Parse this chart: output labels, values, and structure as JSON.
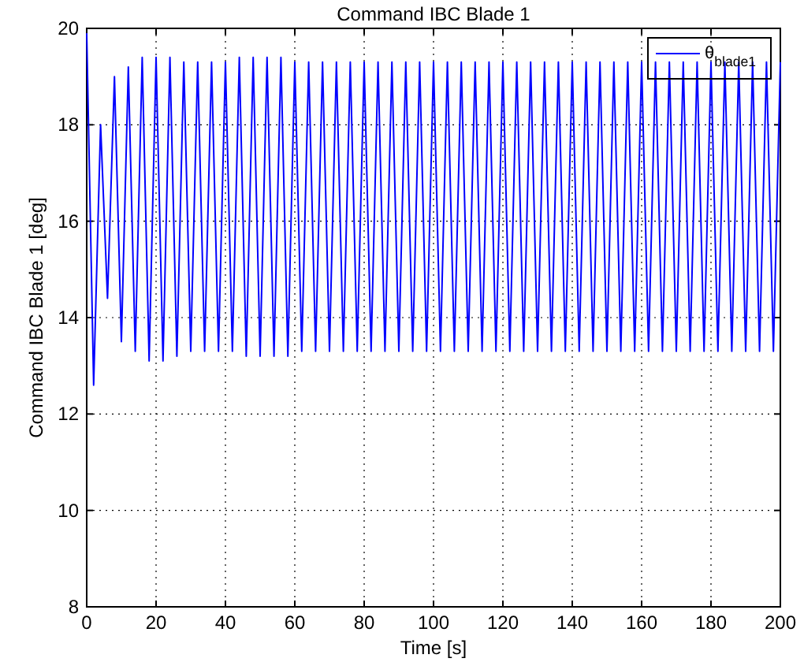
{
  "chart_data": {
    "type": "line",
    "title": "Command IBC Blade 1",
    "xlabel": "Time [s]",
    "ylabel": "Command IBC Blade 1 [deg]",
    "xlim": [
      0,
      200
    ],
    "xticks": [
      0,
      20,
      40,
      60,
      80,
      100,
      120,
      140,
      160,
      180,
      200
    ],
    "ylim": [
      8,
      20
    ],
    "yticks": [
      8,
      10,
      12,
      14,
      16,
      18,
      20
    ],
    "grid": true,
    "legend": "top right",
    "series": [
      {
        "name": "θ$_{blade1}$",
        "color": "#0000ff",
        "x": [
          0,
          2,
          4,
          6,
          8,
          10,
          12,
          14,
          16,
          18,
          20,
          22,
          24,
          26,
          28,
          30,
          32,
          34,
          36,
          38,
          40,
          42,
          44,
          46,
          48,
          50,
          52,
          54,
          56,
          58,
          60,
          62,
          64,
          66,
          68,
          70,
          72,
          74,
          76,
          78,
          80,
          82,
          84,
          86,
          88,
          90,
          92,
          94,
          96,
          98,
          100,
          102,
          104,
          106,
          108,
          110,
          112,
          114,
          116,
          118,
          120,
          122,
          124,
          126,
          128,
          130,
          132,
          134,
          136,
          138,
          140,
          142,
          144,
          146,
          148,
          150,
          152,
          154,
          156,
          158,
          160,
          162,
          164,
          166,
          168,
          170,
          172,
          174,
          176,
          178,
          180,
          182,
          184,
          186,
          188,
          190,
          192,
          194,
          196,
          198,
          200
        ],
        "values": [
          19.9,
          12.6,
          18.0,
          14.4,
          19.0,
          13.5,
          19.2,
          13.3,
          19.4,
          13.1,
          19.4,
          13.1,
          19.4,
          13.2,
          19.3,
          13.3,
          19.3,
          13.3,
          19.3,
          13.3,
          19.3,
          13.3,
          19.4,
          13.2,
          19.4,
          13.2,
          19.4,
          13.2,
          19.4,
          13.2,
          19.3,
          13.3,
          19.3,
          13.3,
          19.3,
          13.3,
          19.3,
          13.3,
          19.3,
          13.3,
          19.3,
          13.3,
          19.3,
          13.3,
          19.3,
          13.3,
          19.3,
          13.3,
          19.3,
          13.3,
          19.3,
          13.3,
          19.3,
          13.3,
          19.3,
          13.3,
          19.3,
          13.3,
          19.3,
          13.3,
          19.3,
          13.3,
          19.3,
          13.3,
          19.3,
          13.3,
          19.3,
          13.3,
          19.3,
          13.3,
          19.3,
          13.3,
          19.3,
          13.3,
          19.3,
          13.3,
          19.3,
          13.3,
          19.3,
          13.3,
          19.3,
          13.3,
          19.3,
          13.3,
          19.3,
          13.3,
          19.3,
          13.3,
          19.3,
          13.3,
          19.3,
          13.3,
          19.3,
          13.3,
          19.3,
          13.3,
          19.3,
          13.3,
          19.3,
          13.3,
          19.3
        ]
      }
    ]
  }
}
